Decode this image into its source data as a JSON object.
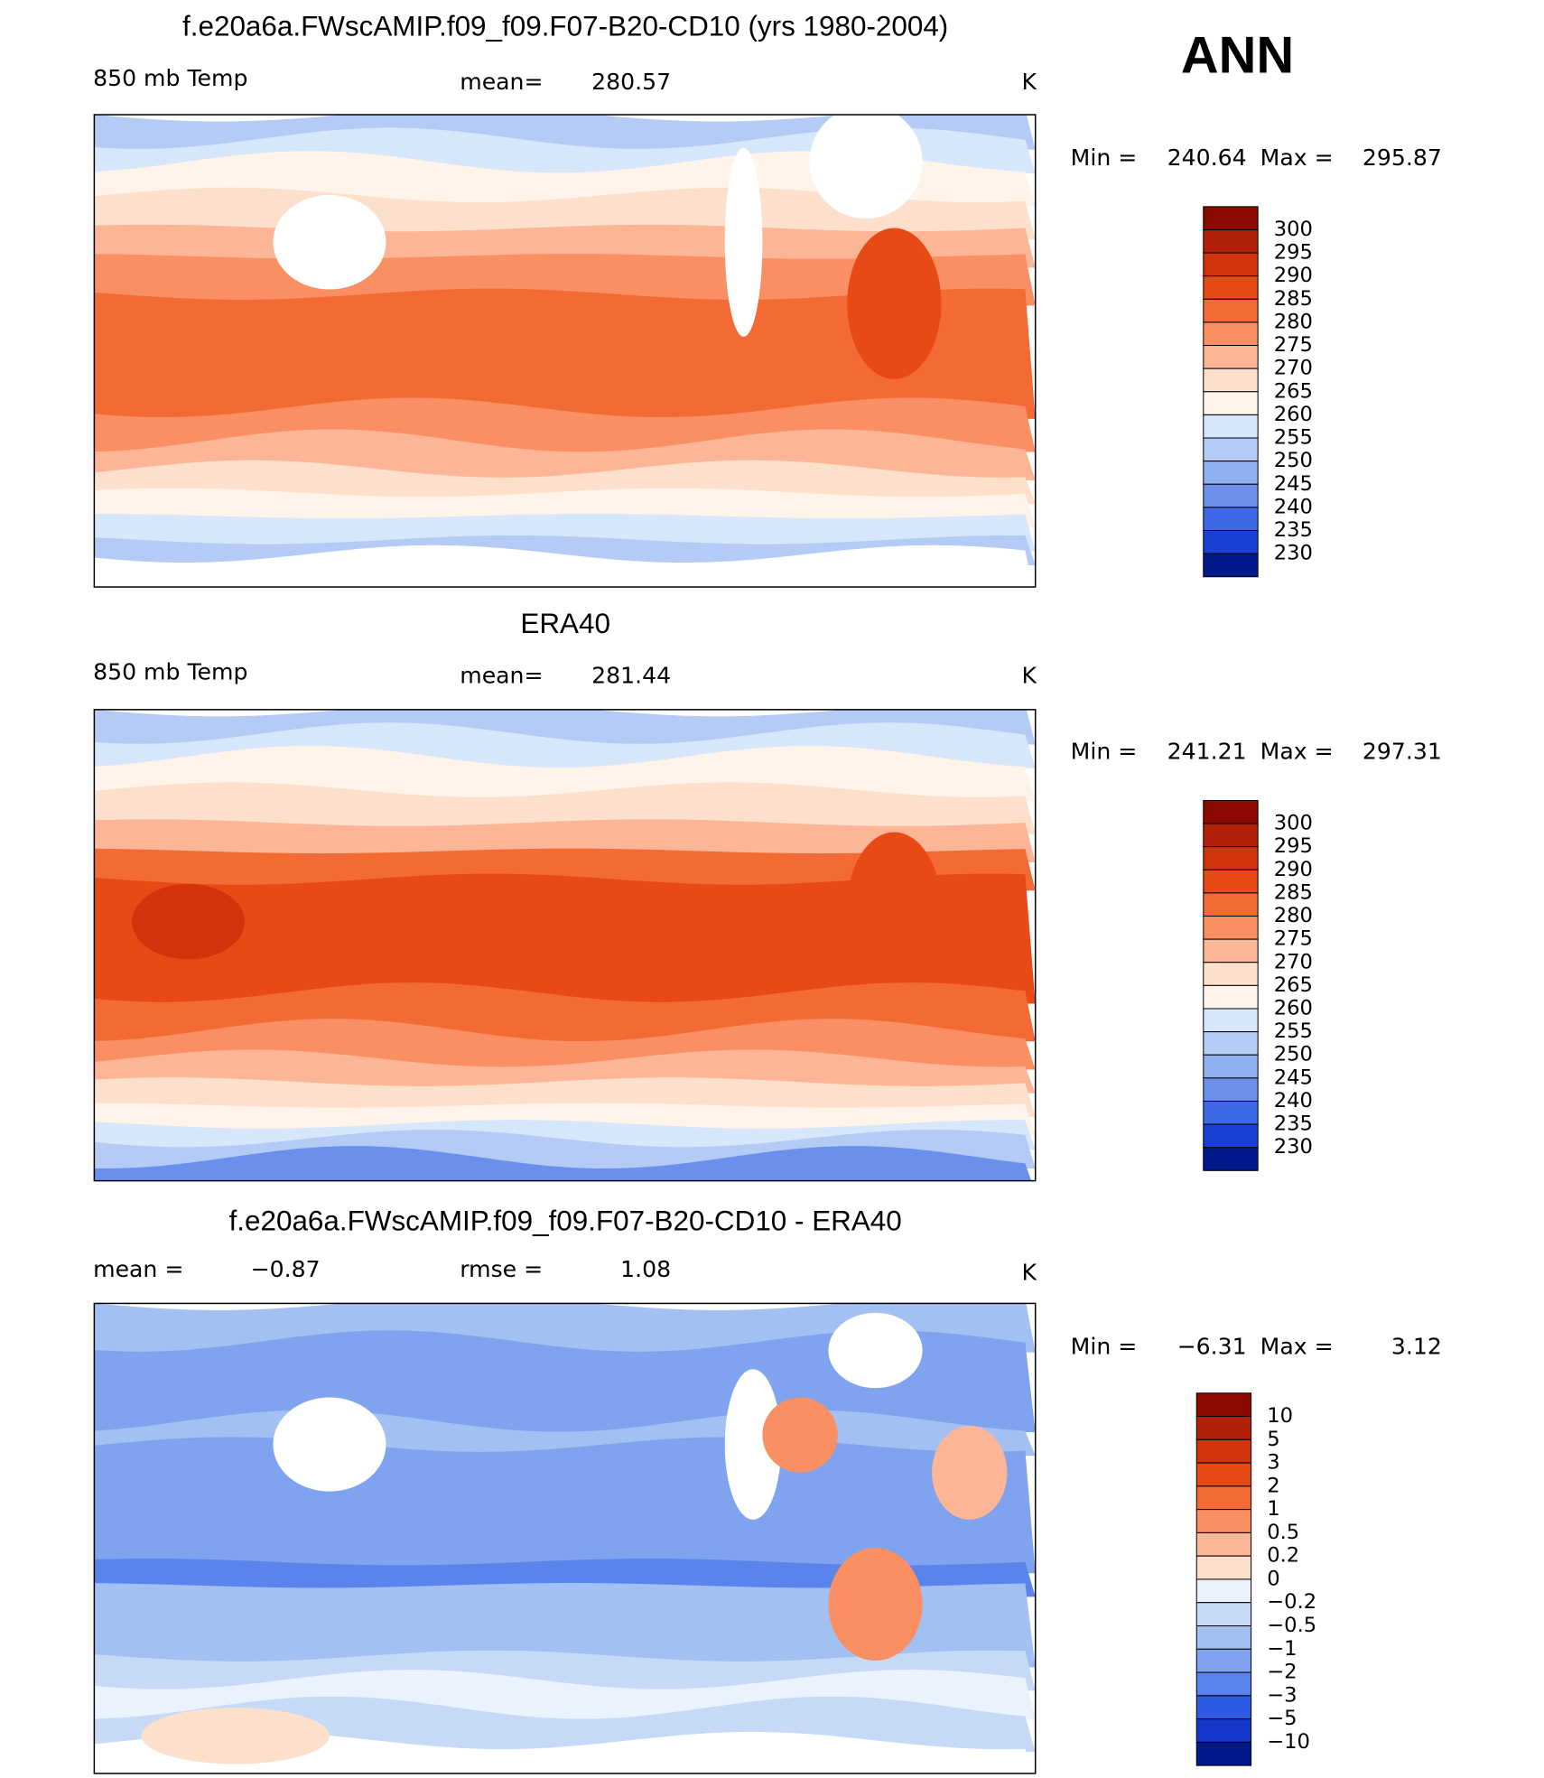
{
  "header": {
    "season": "ANN"
  },
  "colorbars": {
    "temp": {
      "labels": [
        "300",
        "295",
        "290",
        "285",
        "280",
        "275",
        "270",
        "265",
        "260",
        "255",
        "250",
        "245",
        "240",
        "235",
        "230"
      ],
      "colors": [
        "#8a0a00",
        "#b3200a",
        "#d2330c",
        "#e74a15",
        "#f36a34",
        "#f98f62",
        "#fcb596",
        "#fde0cb",
        "#fff3ea",
        "#d6e6fb",
        "#b3cbf5",
        "#8fb0f0",
        "#6a90ec",
        "#3f68e6",
        "#1a3fd4",
        "#001a8c"
      ]
    },
    "diff": {
      "labels": [
        "10",
        "5",
        "3",
        "2",
        "1",
        "0.5",
        "0.2",
        "0",
        "−0.2",
        "−0.5",
        "−1",
        "−2",
        "−3",
        "−5",
        "−10"
      ],
      "colors": [
        "#8a0a00",
        "#b3200a",
        "#d2330c",
        "#e74a15",
        "#f36a34",
        "#f98f62",
        "#fcb596",
        "#fde0cb",
        "#eaf2fd",
        "#c6daf8",
        "#a3c0f3",
        "#7fa3ef",
        "#5a84eb",
        "#2f5be4",
        "#1537cc",
        "#001a8c"
      ]
    }
  },
  "panels": [
    {
      "title": "f.e20a6a.FWscAMIP.f09_f09.F07-B20-CD10 (yrs 1980-2004)",
      "left_label": "850 mb Temp",
      "stat_label": "mean=",
      "stat_value": "280.57",
      "units": "K",
      "min_label": "Min =",
      "min": "240.64",
      "max_label": "Max =",
      "max": "295.87",
      "colorbar": "temp"
    },
    {
      "title": "ERA40",
      "left_label": "850 mb Temp",
      "stat_label": "mean=",
      "stat_value": "281.44",
      "units": "K",
      "min_label": "Min =",
      "min": "241.21",
      "max_label": "Max =",
      "max": "297.31",
      "colorbar": "temp"
    },
    {
      "title": "f.e20a6a.FWscAMIP.f09_f09.F07-B20-CD10 - ERA40",
      "left_label": "mean =",
      "left_value": "−0.87",
      "stat_label": "rmse =",
      "stat_value": "1.08",
      "units": "K",
      "min_label": "Min =",
      "min": "−6.31",
      "max_label": "Max =",
      "max": "3.12",
      "colorbar": "diff"
    }
  ]
}
